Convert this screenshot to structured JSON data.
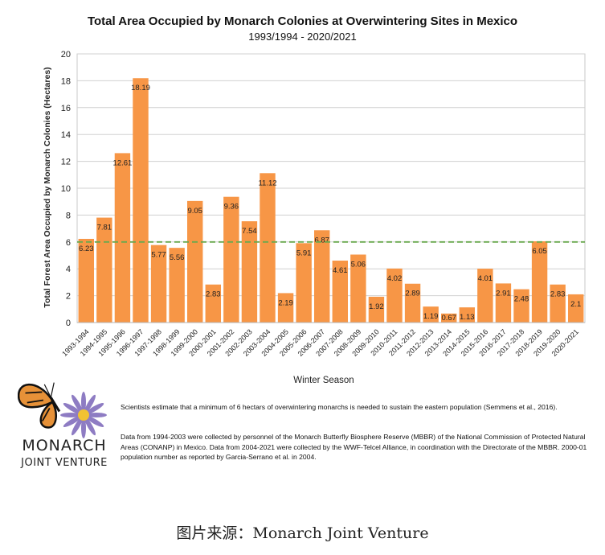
{
  "chart_data": {
    "type": "bar",
    "title": "Total Area Occupied by Monarch Colonies at Overwintering Sites in Mexico",
    "subtitle": "1993/1994 - 2020/2021",
    "xlabel": "Winter Season",
    "ylabel": "Total Forest Area Occupied by Monarch Colonies (Hectares)",
    "ylim": [
      0,
      20
    ],
    "yticks": [
      0,
      2,
      4,
      6,
      8,
      10,
      12,
      14,
      16,
      18,
      20
    ],
    "grid": true,
    "reference_line": {
      "value": 6,
      "style": "dashed",
      "color": "#6aa84f"
    },
    "bar_color": "#f79646",
    "categories": [
      "1993-1994",
      "1994-1995",
      "1995-1996",
      "1996-1997",
      "1997-1998",
      "1998-1999",
      "1999-2000",
      "2000-2001",
      "2001-2002",
      "2002-2003",
      "2003-2004",
      "2004-2005",
      "2005-2006",
      "2006-2007",
      "2007-2008",
      "2008-2009",
      "2009-2010",
      "2010-2011",
      "2011-2012",
      "2012-2013",
      "2013-2014",
      "2014-2015",
      "2015-2016",
      "2016-2017",
      "2017-2018",
      "2018-2019",
      "2019-2020",
      "2020-2021"
    ],
    "values": [
      6.23,
      7.81,
      12.61,
      18.19,
      5.77,
      5.56,
      9.05,
      2.83,
      9.36,
      7.54,
      11.12,
      2.19,
      5.91,
      6.87,
      4.61,
      5.06,
      1.92,
      4.02,
      2.89,
      1.19,
      0.67,
      1.13,
      4.01,
      2.91,
      2.48,
      6.05,
      2.83,
      2.1
    ],
    "labels": [
      "6.23",
      "7.81",
      "12.61",
      "18.19",
      "5.77",
      "5.56",
      "9.05",
      "2.83",
      "9.36",
      "7.54",
      "11.12",
      "2.19",
      "5.91",
      "6.87",
      "4.61",
      "5.06",
      "1.92",
      "4.02",
      "2.89",
      "1.19",
      "0.67",
      "1.13",
      "4.01",
      "2.91",
      "2.48",
      "6.05",
      "2.83",
      "2.1"
    ]
  },
  "logo": {
    "line1": "MONARCH",
    "line2": "JOINT VENTURE"
  },
  "notes": {
    "note1": "Scientists estimate that a minimum of 6 hectars of overwintering monarchs is needed to sustain the eastern population (Semmens et al., 2016).",
    "note2": "Data from 1994-2003 were collected by personnel of the Monarch Butterfly Biosphere Reserve (MBBR) of the National Commission of Protected Natural Areas (CONANP) in Mexico. Data from 2004-2021 were collected by the WWF-Telcel Alliance, in coordination with the Directorate of the MBBR. 2000-01 population number as reported by Garcia-Serrano et al. in 2004."
  },
  "source": "图片来源：Monarch Joint Venture"
}
